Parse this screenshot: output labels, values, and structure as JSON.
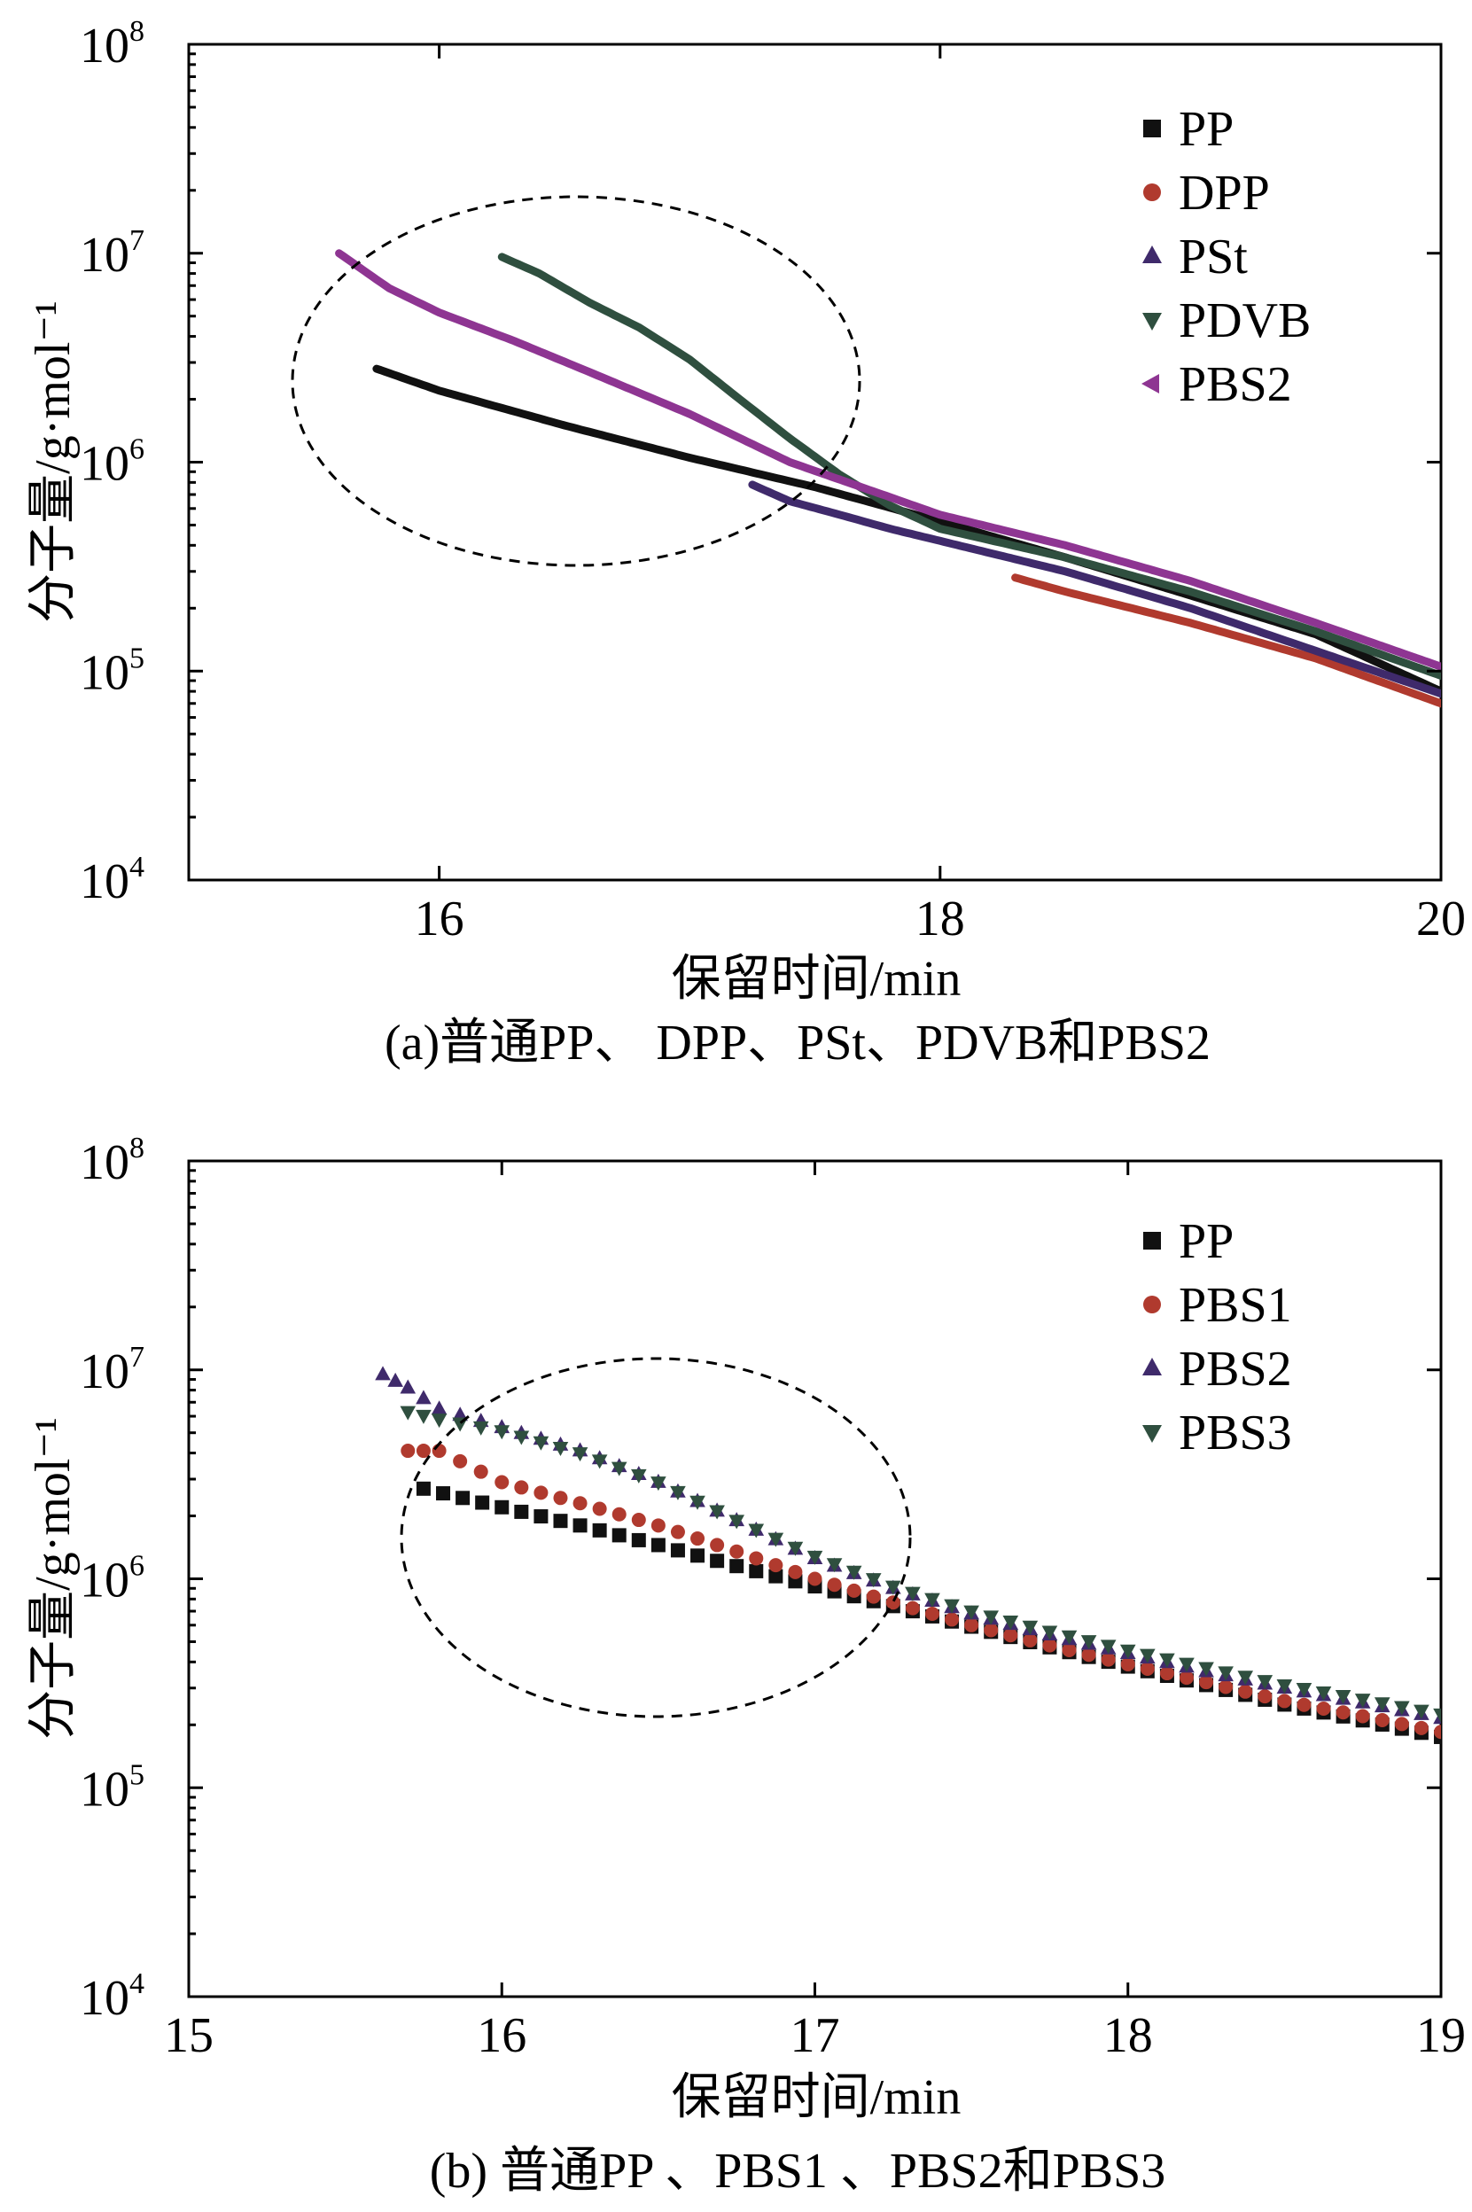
{
  "chart_data": [
    {
      "type": "scatter",
      "title": "",
      "caption": "(a)普通PP、 DPP、PSt、PDVB和PBS2",
      "xlabel": "保留时间/min",
      "ylabel": "分子量/g·mol⁻¹",
      "xlim": [
        15,
        20
      ],
      "ylim_log10": [
        4,
        8
      ],
      "xticks": [
        16,
        18,
        20
      ],
      "xtick_labels": [
        "16",
        "18",
        "20"
      ],
      "yticks_log10": [
        4,
        5,
        6,
        7,
        8
      ],
      "ytick_base": "10",
      "ytick_exponents": [
        "4",
        "5",
        "6",
        "7",
        "8"
      ],
      "legend_position": "top-right",
      "annotation": "dashed ellipse marking the high-molecular-weight region",
      "series": [
        {
          "name": "PP",
          "marker": "square",
          "color": "#111111",
          "x": [
            15.75,
            16.0,
            16.5,
            17.0,
            17.5,
            18.0,
            18.5,
            19.0,
            19.5,
            20.0
          ],
          "y": [
            2800000,
            2200000,
            1500000,
            1050000,
            760000,
            520000,
            350000,
            230000,
            150000,
            80000
          ]
        },
        {
          "name": "DPP",
          "marker": "circle",
          "color": "#b03a2e",
          "x": [
            18.3,
            18.5,
            19.0,
            19.5,
            20.0
          ],
          "y": [
            280000,
            240000,
            170000,
            115000,
            70000
          ]
        },
        {
          "name": "PSt",
          "marker": "triangle-up",
          "color": "#3f2a6b",
          "x": [
            17.25,
            17.4,
            17.6,
            17.8,
            18.0,
            18.5,
            19.0,
            19.5,
            20.0
          ],
          "y": [
            780000,
            650000,
            560000,
            480000,
            420000,
            300000,
            200000,
            125000,
            78000
          ]
        },
        {
          "name": "PDVB",
          "marker": "triangle-down",
          "color": "#2f4f3f",
          "x": [
            16.25,
            16.4,
            16.6,
            16.8,
            17.0,
            17.2,
            17.4,
            17.6,
            17.8,
            18.0,
            18.5,
            19.0,
            19.5,
            20.0
          ],
          "y": [
            9600000,
            8000000,
            5800000,
            4400000,
            3100000,
            2000000,
            1300000,
            870000,
            620000,
            480000,
            350000,
            240000,
            155000,
            95000
          ]
        },
        {
          "name": "PBS2",
          "marker": "triangle-left",
          "color": "#8e3592",
          "x": [
            15.6,
            15.8,
            16.0,
            16.3,
            16.6,
            17.0,
            17.4,
            17.8,
            18.0,
            18.5,
            19.0,
            19.5,
            20.0
          ],
          "y": [
            10000000,
            6800000,
            5200000,
            3800000,
            2700000,
            1700000,
            1000000,
            680000,
            560000,
            400000,
            270000,
            170000,
            105000
          ]
        }
      ]
    },
    {
      "type": "scatter",
      "title": "",
      "caption": "(b) 普通PP 、PBS1 、PBS2和PBS3",
      "xlabel": "保留时间/min",
      "ylabel": "分子量/g·mol⁻¹",
      "xlim": [
        15,
        19
      ],
      "ylim_log10": [
        4,
        8
      ],
      "xticks": [
        15,
        16,
        17,
        18,
        19
      ],
      "xtick_labels": [
        "15",
        "16",
        "17",
        "18",
        "19"
      ],
      "yticks_log10": [
        4,
        5,
        6,
        7,
        8
      ],
      "ytick_base": "10",
      "ytick_exponents": [
        "4",
        "5",
        "6",
        "7",
        "8"
      ],
      "legend_position": "top-right",
      "annotation": "dashed ellipse marking the high-molecular-weight region",
      "series": [
        {
          "name": "PP",
          "marker": "square",
          "color": "#111111",
          "x": [
            15.75,
            16.0,
            16.25,
            16.5,
            16.75,
            17.0,
            17.25,
            17.5,
            17.75,
            18.0,
            18.25,
            18.5,
            18.75,
            19.0
          ],
          "y": [
            2700000,
            2200000,
            1800000,
            1450000,
            1150000,
            920000,
            740000,
            590000,
            470000,
            380000,
            310000,
            250000,
            210000,
            175000
          ]
        },
        {
          "name": "PBS1",
          "marker": "circle",
          "color": "#b03a2e",
          "x": [
            15.7,
            15.8,
            16.0,
            16.25,
            16.5,
            16.75,
            17.0,
            17.25,
            17.5,
            17.75,
            18.0,
            18.25,
            18.5,
            18.75,
            19.0
          ],
          "y": [
            4100000,
            4100000,
            2900000,
            2300000,
            1800000,
            1350000,
            1000000,
            770000,
            600000,
            480000,
            390000,
            320000,
            260000,
            220000,
            185000
          ]
        },
        {
          "name": "PBS2",
          "marker": "triangle-up",
          "color": "#3f2a6b",
          "x": [
            15.62,
            15.7,
            15.8,
            16.0,
            16.25,
            16.5,
            16.75,
            17.0,
            17.25,
            17.5,
            17.75,
            18.0,
            18.25,
            18.5,
            18.75,
            19.0
          ],
          "y": [
            9500000,
            8200000,
            6500000,
            5300000,
            4100000,
            2900000,
            1900000,
            1250000,
            900000,
            680000,
            540000,
            440000,
            360000,
            300000,
            255000,
            215000
          ]
        },
        {
          "name": "PBS3",
          "marker": "triangle-down",
          "color": "#2f4f3f",
          "x": [
            15.7,
            15.8,
            16.0,
            16.25,
            16.5,
            16.75,
            17.0,
            17.25,
            17.5,
            17.75,
            18.0,
            18.25,
            18.5,
            18.75,
            19.0
          ],
          "y": [
            6300000,
            5800000,
            5100000,
            4000000,
            2900000,
            1900000,
            1280000,
            920000,
            700000,
            560000,
            455000,
            375000,
            310000,
            265000,
            225000
          ]
        }
      ]
    }
  ]
}
